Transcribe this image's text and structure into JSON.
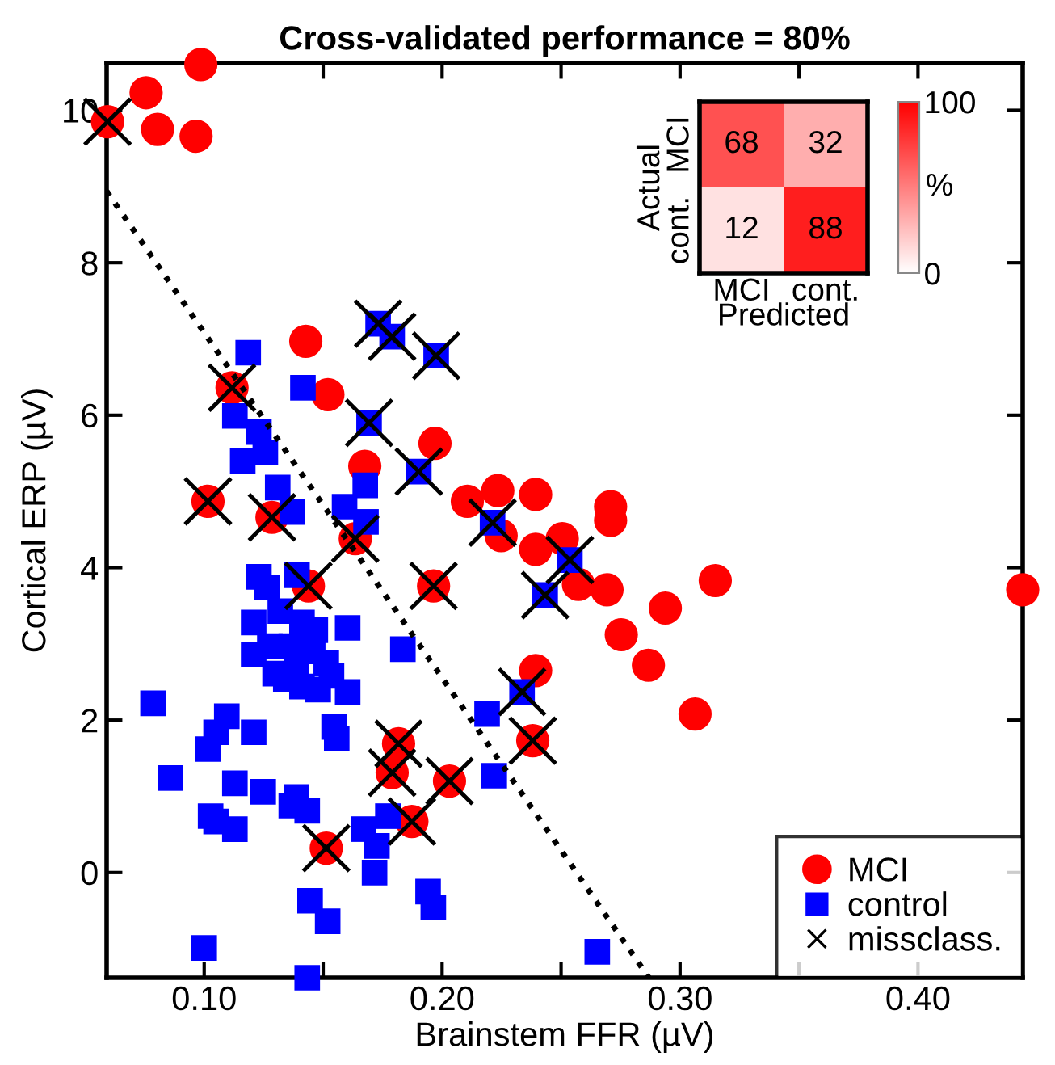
{
  "chart_data": [
    {
      "type": "scatter",
      "title": "Cross-validated performance = 80%",
      "xlabel": "Brainstem FFR (µV)",
      "ylabel": "Cortical ERP (µV)",
      "xlim": [
        0.059,
        0.444
      ],
      "ylim": [
        -1.38,
        10.62
      ],
      "xticks": [
        {
          "value": 0.1,
          "label": "0.10"
        },
        {
          "value": 0.15,
          "label": null
        },
        {
          "value": 0.2,
          "label": "0.20"
        },
        {
          "value": 0.25,
          "label": null
        },
        {
          "value": 0.3,
          "label": "0.30"
        },
        {
          "value": 0.35,
          "label": null
        },
        {
          "value": 0.4,
          "label": "0.40"
        }
      ],
      "yticks": [
        0,
        2,
        4,
        6,
        8,
        10
      ],
      "legend": "bottom right",
      "series": [
        {
          "type": "line",
          "color": "#000000",
          "line_style": "dotted",
          "marker": "none",
          "x": [
            0.059,
            0.2869
          ],
          "values": [
            8.94,
            -1.38
          ]
        },
        {
          "type": "scatter",
          "name": "MCI",
          "color": "#ff0000",
          "marker": "circle",
          "x": [
            0.0594,
            0.0756,
            0.0804,
            0.0986,
            0.0966,
            0.1427,
            0.152,
            0.1675,
            0.197,
            0.2106,
            0.2234,
            0.2393,
            0.2248,
            0.2393,
            0.2505,
            0.2708,
            0.2708,
            0.2573,
            0.2693,
            0.3148,
            0.2938,
            0.2753,
            0.2867,
            0.3063,
            0.444,
            0.2393,
            0.2381,
            0.1016,
            0.1285,
            0.1635,
            0.1438,
            0.1964,
            0.1817,
            0.179,
            0.2031,
            0.1873,
            0.1513,
            0.1117
          ],
          "values": [
            9.85,
            10.23,
            9.75,
            10.6,
            9.66,
            6.97,
            6.27,
            5.33,
            5.63,
            4.87,
            5.01,
            4.96,
            4.42,
            4.24,
            4.38,
            4.8,
            4.62,
            3.78,
            3.71,
            3.83,
            3.47,
            3.12,
            2.72,
            2.08,
            3.71,
            2.65,
            1.73,
            4.87,
            4.66,
            4.38,
            3.76,
            3.76,
            1.69,
            1.31,
            1.2,
            0.67,
            0.32,
            6.36
          ]
        },
        {
          "type": "scatter",
          "name": "control",
          "color": "#0000ff",
          "marker": "square",
          "x": [
            0.1185,
            0.1415,
            0.1129,
            0.123,
            0.1257,
            0.1162,
            0.1309,
            0.1677,
            0.159,
            0.1731,
            0.179,
            0.1975,
            0.1693,
            0.1902,
            0.2212,
            0.2433,
            0.2336,
            0.2537,
            0.137,
            0.168,
            0.139,
            0.123,
            0.1264,
            0.1603,
            0.1835,
            0.1208,
            0.132,
            0.1411,
            0.1467,
            0.1208,
            0.1276,
            0.1388,
            0.1513,
            0.1298,
            0.1343,
            0.1411,
            0.1479,
            0.1535,
            0.1603,
            0.1456,
            0.1366,
            0.0785,
            0.1095,
            0.105,
            0.1016,
            0.1208,
            0.1546,
            0.1557,
            0.0858,
            0.1129,
            0.1248,
            0.1388,
            0.1366,
            0.1433,
            0.1027,
            0.105,
            0.1129,
            0.167,
            0.1726,
            0.1772,
            0.1716,
            0.1445,
            0.1519,
            0.1941,
            0.1963,
            0.1,
            0.1433,
            0.2189,
            0.2219,
            0.2652
          ],
          "values": [
            6.82,
            6.36,
            5.99,
            5.78,
            5.51,
            5.4,
            5.05,
            5.08,
            4.8,
            7.2,
            7.03,
            6.78,
            5.9,
            5.26,
            4.59,
            3.64,
            2.37,
            4.1,
            4.73,
            4.6,
            3.9,
            3.88,
            3.74,
            3.21,
            2.93,
            3.28,
            3.43,
            3.28,
            3.18,
            2.86,
            2.97,
            2.68,
            2.75,
            2.61,
            2.54,
            2.44,
            2.4,
            2.58,
            2.37,
            2.9,
            2.97,
            2.22,
            2.05,
            1.84,
            1.62,
            1.84,
            1.91,
            1.76,
            1.24,
            1.17,
            1.06,
            0.99,
            0.88,
            0.81,
            0.74,
            0.67,
            0.57,
            0.57,
            0.35,
            0.74,
            0.0,
            -0.37,
            -0.64,
            -0.25,
            -0.46,
            -0.99,
            -1.38,
            2.08,
            1.27,
            -1.04
          ]
        },
        {
          "type": "scatter",
          "name": "missclass.",
          "color": "#000000",
          "marker": "cross",
          "x": [
            0.0594,
            0.1117,
            0.1016,
            0.1285,
            0.1635,
            0.1438,
            0.1964,
            0.1817,
            0.179,
            0.2031,
            0.1873,
            0.1513,
            0.2381,
            0.1731,
            0.179,
            0.1975,
            0.1693,
            0.1902,
            0.2212,
            0.2537,
            0.2433,
            0.2336
          ],
          "values": [
            9.85,
            6.36,
            4.87,
            4.66,
            4.38,
            3.76,
            3.76,
            1.69,
            1.31,
            1.2,
            0.67,
            0.32,
            1.73,
            7.2,
            7.03,
            6.78,
            5.9,
            5.26,
            4.59,
            4.1,
            3.64,
            2.37
          ]
        }
      ]
    },
    {
      "type": "heatmap",
      "xlabel": "Predicted",
      "ylabel": "Actual",
      "clabel": "%",
      "categories": [
        "MCI",
        "cont."
      ],
      "y_categories": [
        "MCI",
        "cont."
      ],
      "cells": [
        [
          68,
          32
        ],
        [
          12,
          88
        ]
      ],
      "clim": [
        0,
        100
      ],
      "cticks": [
        0,
        100
      ],
      "data_labels": true
    }
  ]
}
